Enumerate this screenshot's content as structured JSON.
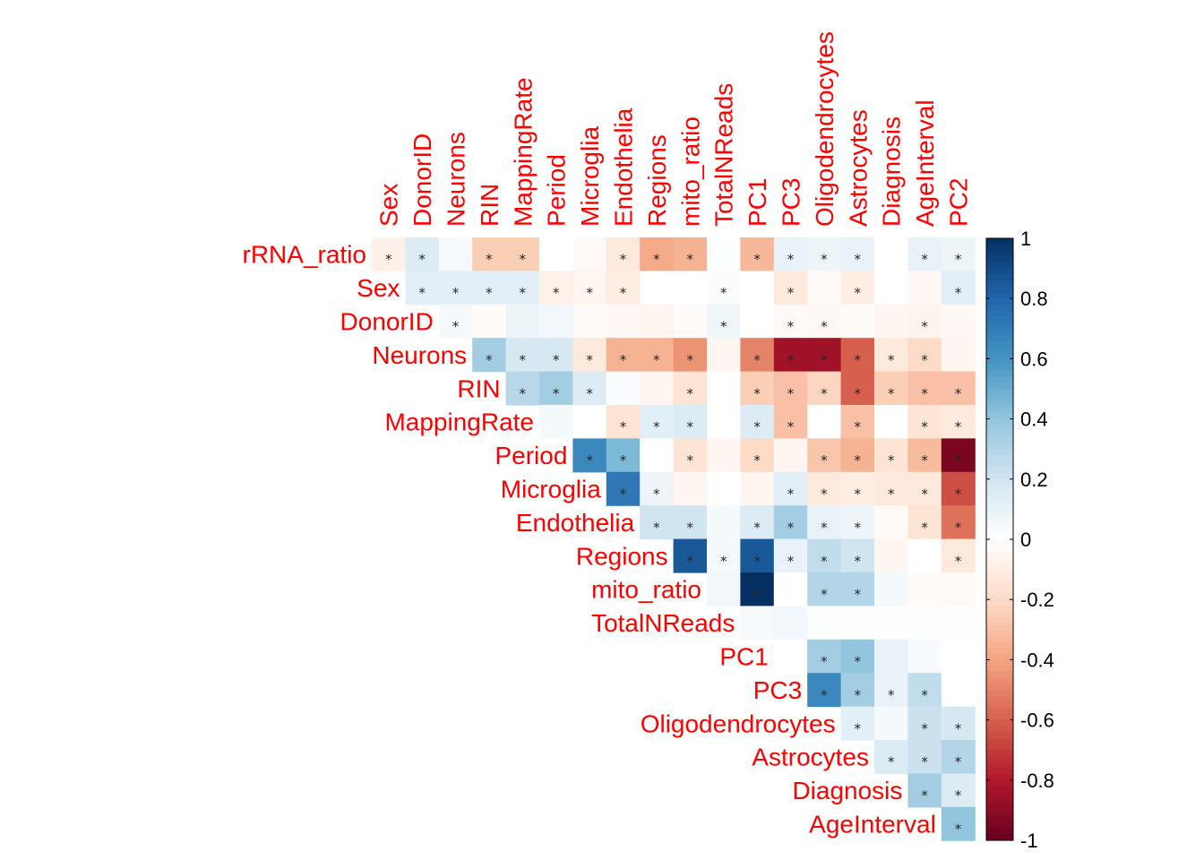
{
  "chart_data": {
    "type": "heatmap",
    "layout": "upper-triangle",
    "row_labels": [
      "rRNA_ratio",
      "Sex",
      "DonorID",
      "Neurons",
      "RIN",
      "MappingRate",
      "Period",
      "Microglia",
      "Endothelia",
      "Regions",
      "mito_ratio",
      "TotalNReads",
      "PC1",
      "PC3",
      "Oligodendrocytes",
      "Astrocytes",
      "Diagnosis",
      "AgeInterval"
    ],
    "col_labels": [
      "Sex",
      "DonorID",
      "Neurons",
      "RIN",
      "MappingRate",
      "Period",
      "Microglia",
      "Endothelia",
      "Regions",
      "mito_ratio",
      "TotalNReads",
      "PC1",
      "PC3",
      "Oligodendrocytes",
      "Astrocytes",
      "Diagnosis",
      "AgeInterval",
      "PC2"
    ],
    "significance_marker": "*",
    "rows": [
      {
        "row": "rRNA_ratio",
        "values": [
          -0.08,
          0.15,
          0.04,
          -0.25,
          -0.25,
          0.0,
          -0.03,
          -0.12,
          -0.38,
          -0.35,
          0.01,
          -0.33,
          0.1,
          0.08,
          0.1,
          0.0,
          0.1,
          0.08
        ],
        "sig": [
          1,
          1,
          0,
          1,
          1,
          0,
          0,
          1,
          1,
          1,
          0,
          1,
          1,
          1,
          1,
          0,
          1,
          1
        ]
      },
      {
        "row": "Sex",
        "values": [
          0.12,
          0.12,
          0.12,
          0.12,
          -0.08,
          -0.05,
          -0.1,
          0.0,
          0.0,
          0.02,
          0.0,
          -0.12,
          -0.03,
          -0.1,
          0.0,
          -0.04,
          0.12
        ],
        "sig": [
          1,
          1,
          1,
          1,
          1,
          1,
          1,
          0,
          0,
          1,
          0,
          1,
          0,
          1,
          0,
          0,
          1
        ]
      },
      {
        "row": "DonorID",
        "values": [
          0.05,
          -0.02,
          0.08,
          0.06,
          -0.03,
          -0.04,
          -0.05,
          -0.02,
          0.07,
          0.0,
          -0.03,
          -0.04,
          -0.02,
          -0.05,
          -0.06,
          -0.04
        ],
        "sig": [
          1,
          0,
          0,
          0,
          0,
          0,
          0,
          0,
          1,
          0,
          1,
          1,
          0,
          0,
          1,
          0
        ]
      },
      {
        "row": "Neurons",
        "values": [
          0.35,
          0.18,
          0.18,
          -0.12,
          -0.35,
          -0.35,
          -0.45,
          -0.05,
          -0.5,
          -0.85,
          -0.85,
          -0.6,
          -0.12,
          -0.2,
          -0.05
        ],
        "sig": [
          1,
          1,
          1,
          1,
          1,
          1,
          1,
          0,
          1,
          1,
          1,
          1,
          1,
          1,
          0
        ]
      },
      {
        "row": "RIN",
        "values": [
          0.28,
          0.35,
          0.15,
          0.02,
          -0.05,
          -0.15,
          0.0,
          -0.25,
          -0.3,
          -0.22,
          -0.6,
          -0.25,
          -0.3,
          -0.3
        ],
        "sig": [
          1,
          1,
          1,
          0,
          0,
          1,
          0,
          1,
          1,
          1,
          1,
          1,
          1,
          1
        ]
      },
      {
        "row": "MappingRate",
        "values": [
          0.05,
          0.0,
          -0.15,
          0.12,
          0.15,
          0.0,
          0.15,
          -0.3,
          0.0,
          -0.3,
          0.0,
          -0.15,
          -0.12
        ],
        "sig": [
          0,
          0,
          1,
          1,
          1,
          0,
          1,
          1,
          0,
          1,
          0,
          1,
          1
        ]
      },
      {
        "row": "Period",
        "values": [
          0.65,
          0.45,
          0.0,
          -0.15,
          -0.05,
          -0.2,
          -0.05,
          -0.28,
          -0.35,
          -0.15,
          -0.32,
          -0.95
        ],
        "sig": [
          1,
          1,
          0,
          1,
          0,
          1,
          0,
          1,
          1,
          1,
          1,
          1
        ]
      },
      {
        "row": "Microglia",
        "values": [
          0.72,
          0.08,
          -0.05,
          0.0,
          -0.05,
          0.12,
          -0.12,
          -0.1,
          -0.12,
          -0.12,
          -0.65
        ],
        "sig": [
          1,
          1,
          0,
          0,
          0,
          1,
          1,
          1,
          1,
          1,
          1
        ]
      },
      {
        "row": "Endothelia",
        "values": [
          0.2,
          0.2,
          0.05,
          0.15,
          0.35,
          0.1,
          0.08,
          -0.03,
          -0.15,
          -0.55
        ],
        "sig": [
          1,
          1,
          0,
          1,
          1,
          1,
          1,
          0,
          1,
          1
        ]
      },
      {
        "row": "Regions",
        "values": [
          0.85,
          0.05,
          0.85,
          0.1,
          0.25,
          0.2,
          -0.05,
          0.0,
          -0.12
        ],
        "sig": [
          1,
          1,
          1,
          1,
          1,
          1,
          0,
          0,
          1
        ]
      },
      {
        "row": "mito_ratio",
        "values": [
          0.06,
          1.0,
          0.0,
          0.3,
          0.3,
          0.05,
          -0.02,
          -0.03
        ],
        "sig": [
          0,
          1,
          0,
          1,
          1,
          0,
          0,
          0
        ]
      },
      {
        "row": "TotalNReads",
        "values": [
          0.04,
          0.06,
          0.01,
          0.01,
          0.01,
          0.01,
          0.01
        ],
        "sig": [
          0,
          0,
          0,
          0,
          0,
          0,
          0
        ]
      },
      {
        "row": "PC1",
        "values": [
          0.0,
          0.35,
          0.4,
          0.1,
          0.03,
          0.0
        ],
        "sig": [
          0,
          1,
          1,
          0,
          0,
          0
        ]
      },
      {
        "row": "PC3",
        "values": [
          0.65,
          0.35,
          0.1,
          0.25,
          0.0
        ],
        "sig": [
          1,
          1,
          1,
          1,
          0
        ]
      },
      {
        "row": "Oligodendrocytes",
        "values": [
          0.12,
          0.05,
          0.22,
          0.18
        ],
        "sig": [
          1,
          0,
          1,
          1
        ]
      },
      {
        "row": "Astrocytes",
        "values": [
          0.15,
          0.22,
          0.3
        ],
        "sig": [
          1,
          1,
          1
        ]
      },
      {
        "row": "Diagnosis",
        "values": [
          0.35,
          0.15
        ],
        "sig": [
          1,
          1
        ]
      },
      {
        "row": "AgeInterval",
        "values": [
          0.4
        ],
        "sig": [
          1
        ]
      }
    ],
    "colorbar": {
      "ticks": [
        "1",
        "0.8",
        "0.6",
        "0.4",
        "0.2",
        "0",
        "-0.2",
        "-0.4",
        "-0.6",
        "-0.8",
        "-1"
      ],
      "range": [
        -1,
        1
      ],
      "low_color": "#67001f",
      "mid_color": "#ffffff",
      "high_color": "#053061"
    },
    "label_color": "#ff0000"
  }
}
